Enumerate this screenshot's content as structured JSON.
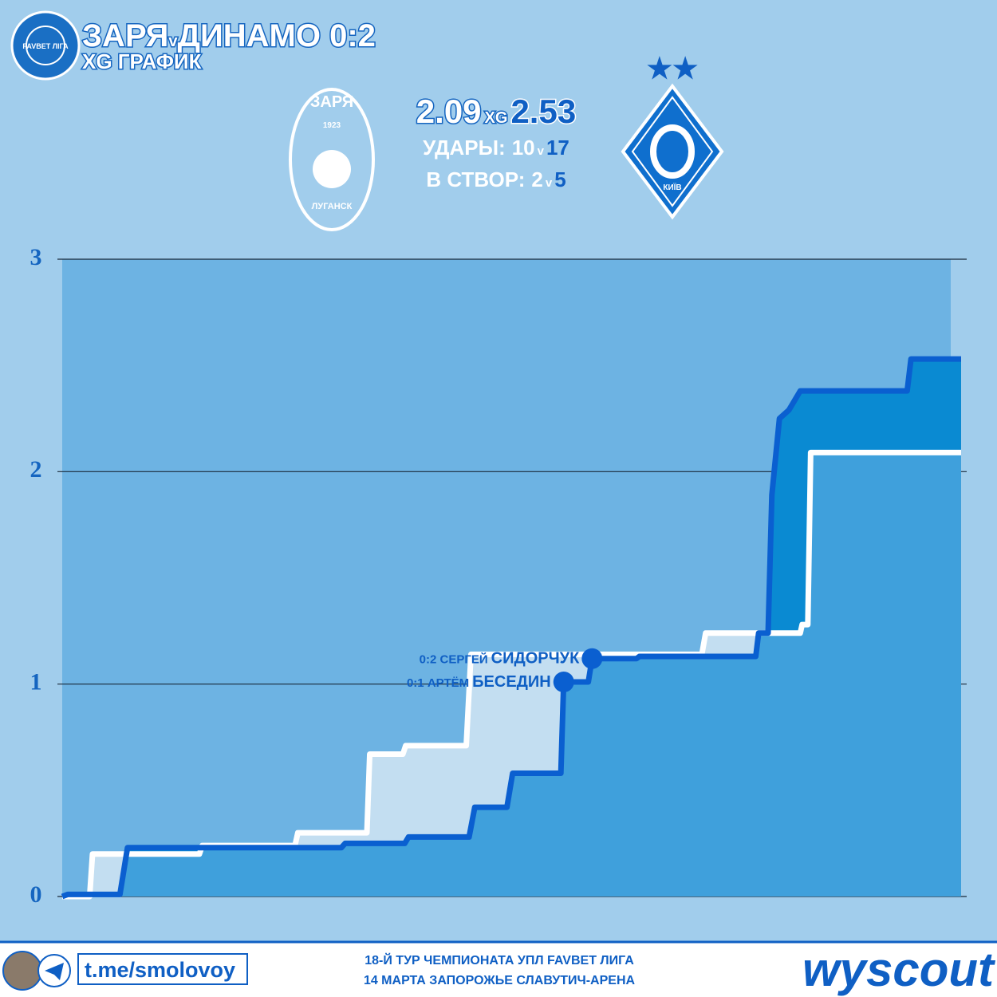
{
  "header": {
    "title_home": "ЗАРЯ",
    "versus": "v",
    "title_away": "ДИНАМО 0:2",
    "subtitle": "XG ГРАФИК",
    "league_logo": "FAVBET ЛІГА",
    "xg_home": 2.09,
    "xg_label": "XG",
    "xg_away": 2.53,
    "shots_label": "УДАРЫ:",
    "shots_home": 10,
    "shots_away": 17,
    "on_target_label": "В СТВОР:",
    "on_target_home": 2,
    "on_target_away": 5,
    "home_logo_name": "ЗАРЯ",
    "home_logo_year": "1923",
    "home_logo_city": "ЛУГАНСК",
    "away_logo_city": "КИЇВ"
  },
  "chart_data": {
    "type": "line",
    "xlim": [
      0,
      95
    ],
    "ylim": [
      0,
      3
    ],
    "yticks": [
      0,
      1,
      2,
      3
    ],
    "grid": true,
    "series": [
      {
        "name": "ЗАРЯ",
        "color": "#ffffff",
        "x": [
          0,
          2.9,
          3.2,
          14.5,
          14.8,
          24.6,
          24.9,
          32.2,
          32.5,
          36,
          36.3,
          42.7,
          43.2,
          67.6,
          68,
          78,
          78.2,
          78.8,
          79.1,
          95
        ],
        "values": [
          0,
          0,
          0.2,
          0.2,
          0.24,
          0.24,
          0.3,
          0.3,
          0.67,
          0.67,
          0.71,
          0.71,
          1.14,
          1.14,
          1.24,
          1.24,
          1.28,
          1.28,
          2.09,
          2.09
        ]
      },
      {
        "name": "ДИНАМО",
        "color": "#0a5fd0",
        "x": [
          0,
          0.6,
          6.1,
          6.9,
          29.5,
          29.9,
          36.2,
          36.6,
          43.0,
          43.6,
          47.0,
          47.6,
          52.7,
          53.0,
          55.6,
          56.0,
          60.7,
          61.0,
          73.3,
          73.6,
          74.6,
          75.0,
          75.8,
          76.8,
          78.0,
          89.3,
          89.7,
          95
        ],
        "values": [
          0,
          0.01,
          0.01,
          0.23,
          0.23,
          0.25,
          0.25,
          0.28,
          0.28,
          0.42,
          0.42,
          0.58,
          0.58,
          1.01,
          1.01,
          1.12,
          1.12,
          1.13,
          1.13,
          1.24,
          1.24,
          1.89,
          2.25,
          2.29,
          2.38,
          2.38,
          2.53,
          2.53
        ]
      }
    ],
    "annotations": [
      {
        "text": "0:1 АРТЁМ",
        "emph": "БЕСЕДИН",
        "x": 53.0,
        "y": 1.01
      },
      {
        "text": "0:2 СЕРГЕЙ",
        "emph": "СИДОРЧУК",
        "x": 56.0,
        "y": 1.12
      }
    ]
  },
  "footer": {
    "link": "t.me/smolovoy",
    "line1": "18-Й ТУР ЧЕМПИОНАТА УПЛ FAVBET ЛИГА",
    "line2": "14 МАРТА ЗАПОРОЖЬЕ СЛАВУТИЧ-АРЕНА",
    "brand": "wyscout"
  }
}
